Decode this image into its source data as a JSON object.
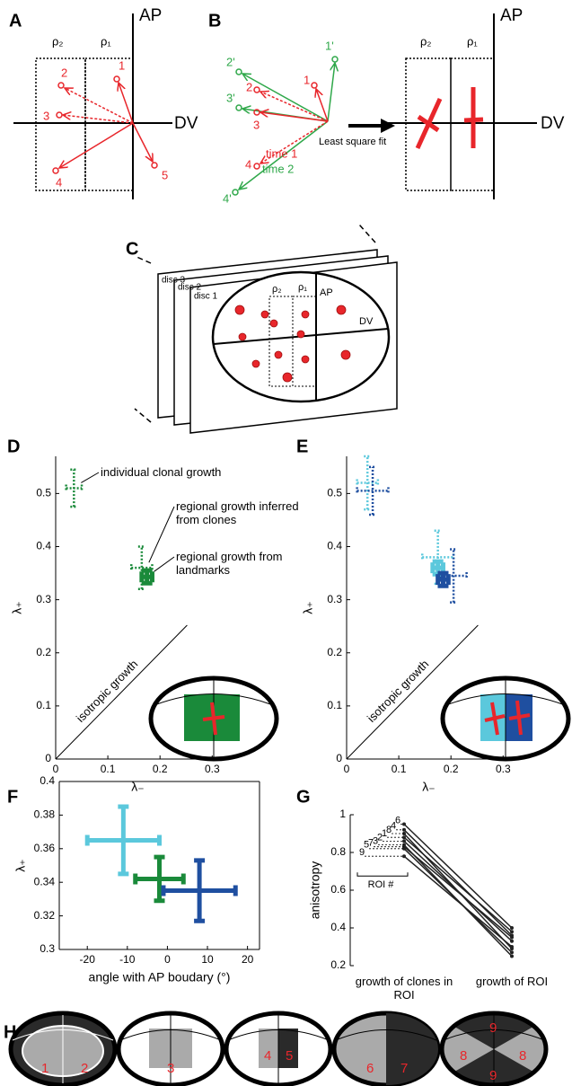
{
  "panel_a": {
    "label": "A",
    "ap": "AP",
    "dv": "DV",
    "rho2": "ρ₂",
    "rho1": "ρ₁",
    "clones": [
      "1",
      "2",
      "3",
      "4",
      "5"
    ]
  },
  "panel_b": {
    "label": "B",
    "clones_t2": [
      "1'",
      "2'",
      "3'",
      "4'"
    ],
    "clones_t1": [
      "1",
      "2",
      "3",
      "4"
    ],
    "time1": "time 1",
    "time2": "time 2",
    "arrow": "Least square fit",
    "ap": "AP",
    "dv": "DV",
    "rho2": "ρ₂",
    "rho1": "ρ₁"
  },
  "panel_c": {
    "label": "C",
    "discs": [
      "disc 3",
      "disc 2",
      "disc 1"
    ],
    "ap": "AP",
    "dv": "DV",
    "rho2": "ρ₂",
    "rho1": "ρ₁"
  },
  "chart_data": [
    {
      "panel": "D",
      "type": "scatter",
      "xlabel": "λ₋",
      "ylabel": "λ₊",
      "xlim": [
        0,
        0.315
      ],
      "ylim": [
        0,
        0.57
      ],
      "xticks": [
        0,
        0.1,
        0.2,
        0.3
      ],
      "yticks": [
        0,
        0.1,
        0.2,
        0.3,
        0.4,
        0.5
      ],
      "diagonal_label": "isotropic growth",
      "annotations": [
        "individual clonal growth",
        "regional growth inferred from clones",
        "regional growth from landmarks"
      ],
      "series": [
        {
          "color": "#1a8a3a",
          "style": "dotted",
          "x": [
            0.035
          ],
          "values": [
            0.51
          ],
          "xerr": [
            0.015
          ],
          "yerr": [
            0.035
          ]
        },
        {
          "color": "#1a8a3a",
          "style": "dotted",
          "x": [
            0.165
          ],
          "values": [
            0.36
          ],
          "xerr": [
            0.02
          ],
          "yerr": [
            0.04
          ]
        },
        {
          "color": "#1a8a3a",
          "style": "solid",
          "x": [
            0.175
          ],
          "values": [
            0.343
          ],
          "xerr": [
            0.01
          ],
          "yerr": [
            0.012
          ]
        }
      ]
    },
    {
      "panel": "E",
      "type": "scatter",
      "xlabel": "λ₋",
      "ylabel": "λ₊",
      "xlim": [
        0,
        0.315
      ],
      "ylim": [
        0,
        0.57
      ],
      "xticks": [
        0,
        0.1,
        0.2,
        0.3
      ],
      "yticks": [
        0,
        0.1,
        0.2,
        0.3,
        0.4,
        0.5
      ],
      "diagonal_label": "isotropic growth",
      "series": [
        {
          "color": "#5bc8dc",
          "style": "dotted",
          "x": [
            0.04
          ],
          "values": [
            0.52
          ],
          "xerr": [
            0.02
          ],
          "yerr": [
            0.05
          ]
        },
        {
          "color": "#1f4fa0",
          "style": "dotted",
          "x": [
            0.05
          ],
          "values": [
            0.505
          ],
          "xerr": [
            0.03
          ],
          "yerr": [
            0.045
          ]
        },
        {
          "color": "#5bc8dc",
          "style": "dotted",
          "x": [
            0.175
          ],
          "values": [
            0.38
          ],
          "xerr": [
            0.03
          ],
          "yerr": [
            0.05
          ]
        },
        {
          "color": "#1f4fa0",
          "style": "dotted",
          "x": [
            0.205
          ],
          "values": [
            0.345
          ],
          "xerr": [
            0.025
          ],
          "yerr": [
            0.05
          ]
        },
        {
          "color": "#5bc8dc",
          "style": "solid",
          "x": [
            0.175
          ],
          "values": [
            0.36
          ],
          "xerr": [
            0.01
          ],
          "yerr": [
            0.012
          ]
        },
        {
          "color": "#1f4fa0",
          "style": "solid",
          "x": [
            0.185
          ],
          "values": [
            0.338
          ],
          "xerr": [
            0.01
          ],
          "yerr": [
            0.012
          ]
        }
      ]
    },
    {
      "panel": "F",
      "type": "scatter",
      "xlabel": "angle with AP boudary (°)",
      "ylabel": "λ₊",
      "xlim": [
        -27,
        23
      ],
      "ylim": [
        0.3,
        0.4
      ],
      "xticks": [
        -20,
        -10,
        0,
        10,
        20
      ],
      "yticks": [
        0.3,
        0.32,
        0.34,
        0.36,
        0.38,
        0.4
      ],
      "box": true,
      "series": [
        {
          "color": "#5bc8dc",
          "style": "solid",
          "x": [
            -11
          ],
          "values": [
            0.365
          ],
          "xerr": [
            9
          ],
          "yerr": [
            0.02
          ]
        },
        {
          "color": "#1a8a3a",
          "style": "solid",
          "x": [
            -2
          ],
          "values": [
            0.342
          ],
          "xerr": [
            6
          ],
          "yerr": [
            0.013
          ]
        },
        {
          "color": "#1f4fa0",
          "style": "solid",
          "x": [
            8
          ],
          "values": [
            0.335
          ],
          "xerr": [
            9
          ],
          "yerr": [
            0.018
          ]
        }
      ]
    },
    {
      "panel": "G",
      "type": "line",
      "ylabel": "anisotropy",
      "annotation": "ROI #",
      "categories": [
        "growth of clones in ROI",
        "growth of ROI"
      ],
      "ylim": [
        0.2,
        1
      ],
      "yticks": [
        0.2,
        0.4,
        0.6,
        0.8,
        1
      ],
      "series": [
        {
          "name": "9",
          "color": "#222",
          "values": [
            0.78,
            0.3
          ]
        },
        {
          "name": "5",
          "color": "#222",
          "values": [
            0.82,
            0.27
          ]
        },
        {
          "name": "7",
          "color": "#222",
          "values": [
            0.83,
            0.35
          ]
        },
        {
          "name": "3",
          "color": "#222",
          "values": [
            0.84,
            0.25
          ]
        },
        {
          "name": "2",
          "color": "#222",
          "values": [
            0.86,
            0.33
          ]
        },
        {
          "name": "1",
          "color": "#222",
          "values": [
            0.88,
            0.38
          ]
        },
        {
          "name": "8",
          "color": "#222",
          "values": [
            0.9,
            0.29
          ]
        },
        {
          "name": "4",
          "color": "#222",
          "values": [
            0.92,
            0.36
          ]
        },
        {
          "name": "6",
          "color": "#222",
          "values": [
            0.95,
            0.4
          ]
        }
      ]
    }
  ],
  "panel_h": {
    "label": "H",
    "regions": [
      "1",
      "2",
      "3",
      "4",
      "5",
      "6",
      "7",
      "9",
      "8",
      "8",
      "9"
    ]
  }
}
